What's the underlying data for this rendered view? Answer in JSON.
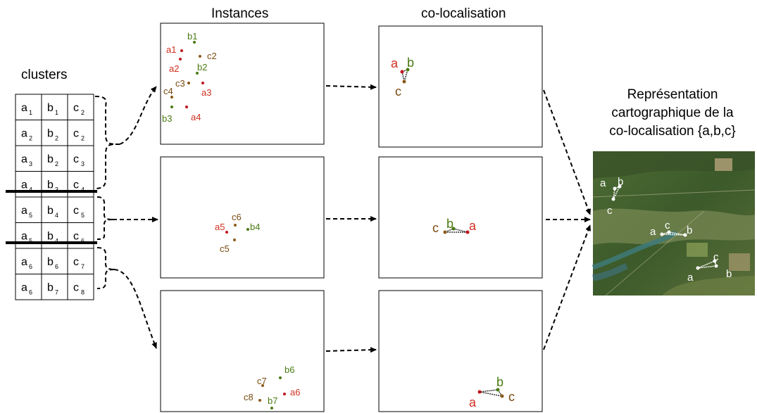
{
  "headers": {
    "clusters": "clusters",
    "instances": "Instances",
    "colocalisation": "co-localisation",
    "map_title_1": "Représentation",
    "map_title_2": "cartographique de la",
    "map_title_3": "co-localisation {a,b,c}"
  },
  "clusters": [
    [
      {
        "l": "a",
        "s": "1"
      },
      {
        "l": "b",
        "s": "1"
      },
      {
        "l": "c",
        "s": "2"
      }
    ],
    [
      {
        "l": "a",
        "s": "2"
      },
      {
        "l": "b",
        "s": "2"
      },
      {
        "l": "c",
        "s": "2"
      }
    ],
    [
      {
        "l": "a",
        "s": "3"
      },
      {
        "l": "b",
        "s": "2"
      },
      {
        "l": "c",
        "s": "3"
      }
    ],
    [
      {
        "l": "a",
        "s": "4"
      },
      {
        "l": "b",
        "s": "3"
      },
      {
        "l": "c",
        "s": "4"
      }
    ],
    [
      {
        "l": "a",
        "s": "5"
      },
      {
        "l": "b",
        "s": "4"
      },
      {
        "l": "c",
        "s": "5"
      }
    ],
    [
      {
        "l": "a",
        "s": "5"
      },
      {
        "l": "b",
        "s": "4"
      },
      {
        "l": "c",
        "s": "6"
      }
    ],
    [
      {
        "l": "a",
        "s": "6"
      },
      {
        "l": "b",
        "s": "6"
      },
      {
        "l": "c",
        "s": "7"
      }
    ],
    [
      {
        "l": "a",
        "s": "6"
      },
      {
        "l": "b",
        "s": "7"
      },
      {
        "l": "c",
        "s": "8"
      }
    ]
  ],
  "instances": [
    [
      "b1",
      "a1",
      "c2",
      "a2",
      "b2",
      "c3",
      "c4",
      "a3",
      "b3",
      "a4"
    ],
    [
      "c6",
      "a5",
      "b4",
      "c5"
    ],
    [
      "b6",
      "c7",
      "c8",
      "a6",
      "b7"
    ]
  ],
  "colocalisation_labels": [
    [
      "a",
      "b",
      "c"
    ],
    [
      "c",
      "a",
      "b"
    ],
    [
      "b",
      "c",
      "a"
    ]
  ],
  "map_labels": [
    "a",
    "b",
    "c",
    "a",
    "c",
    "b",
    "b",
    "c",
    "a"
  ],
  "colors": {
    "a": "#c0141c",
    "b": "#4a7a12",
    "c": "#8a5a1a",
    "a_text": "#d03020",
    "b_text": "#4a7a12",
    "c_text": "#7a4a10"
  }
}
